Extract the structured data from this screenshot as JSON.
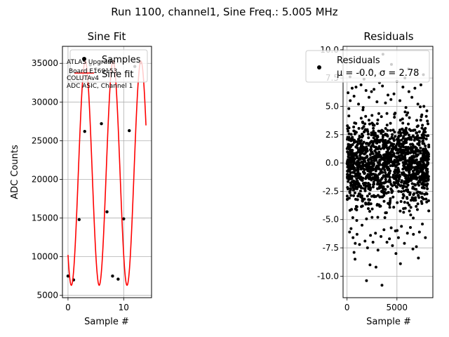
{
  "suptitle": "Run 1100, channel1, Sine Freq.: 5.005 MHz",
  "chart_data": [
    {
      "type": "scatter",
      "title": "Sine Fit",
      "xlabel": "Sample #",
      "ylabel": "ADC Counts",
      "xlim": [
        -1,
        15
      ],
      "ylim": [
        4700,
        37200
      ],
      "xticks": [
        0,
        10
      ],
      "yticks": [
        5000,
        10000,
        15000,
        20000,
        25000,
        30000,
        35000
      ],
      "grid": true,
      "legend_position": "upper right",
      "legend": [
        "Samples",
        "Sine fit"
      ],
      "annotation": [
        "ATLAS Upgrade",
        "Board E169153",
        "COLUTAv4",
        "ADC ASIC, Channel 1"
      ],
      "series": [
        {
          "name": "Samples",
          "color": "#000000",
          "x": [
            0,
            1,
            2,
            3,
            4,
            5,
            6,
            7,
            8,
            9,
            10,
            11,
            12,
            13
          ],
          "y": [
            7500,
            7000,
            14800,
            26200,
            34800,
            34300,
            27200,
            15800,
            7500,
            7100,
            14900,
            26300,
            34600,
            35100
          ]
        },
        {
          "name": "Sine fit",
          "color": "#ff0000",
          "fit": {
            "mean": 20800,
            "amplitude": 14500,
            "period": 5.0,
            "trough_at": 0.6,
            "x_range": [
              0,
              14
            ]
          }
        }
      ]
    },
    {
      "type": "scatter",
      "title": "Residuals",
      "xlabel": "Sample #",
      "xlim": [
        -400,
        8600
      ],
      "ylim": [
        -11.9,
        10.3
      ],
      "xticks": [
        0,
        5000
      ],
      "yticks": [
        -10.0,
        -7.5,
        -5.0,
        -2.5,
        0.0,
        2.5,
        5.0,
        7.5,
        10.0
      ],
      "grid": true,
      "legend_position": "upper right",
      "legend": [
        "Residuals",
        "μ = -0.0, σ = 2.78"
      ],
      "series": [
        {
          "name": "Residuals",
          "color": "#000000",
          "n_points": 8192,
          "mean": 0.0,
          "std": 2.78,
          "x": [
            100,
            180,
            250,
            320,
            400,
            510,
            600,
            700,
            820,
            900,
            1000,
            1150,
            1250,
            1400,
            1500,
            1620,
            1800,
            1900,
            2050,
            2200,
            2350,
            2450,
            2600,
            2700,
            2850,
            3000,
            3100,
            3250,
            3400,
            3550,
            3700,
            3850,
            4000,
            4100,
            4250,
            4400,
            4550,
            4700,
            4850,
            5000,
            5150,
            5300,
            5450,
            5600,
            5750,
            5900,
            6050,
            6200,
            6350,
            6500,
            6650,
            6800,
            6950,
            7100,
            7250,
            7400,
            7550,
            7700,
            7850,
            8000,
            1950,
            2400,
            3500,
            3600,
            300,
            800,
            1300,
            2900,
            4450,
            5350,
            6150,
            7150,
            7650,
            3300,
            700,
            4900,
            5800,
            6600,
            2300,
            1700,
            200,
            650,
            1100,
            1550,
            2000,
            2500,
            2950,
            3450,
            3950,
            4350,
            4800,
            5250,
            5700,
            6250,
            6700,
            7200,
            7600,
            8050,
            450,
            7900
          ],
          "y": [
            6.2,
            4.8,
            -6.1,
            5.5,
            -5.8,
            6.6,
            -6.6,
            5.9,
            -7.1,
            6.7,
            -6.3,
            5.2,
            -7.2,
            6.9,
            -5.5,
            4.9,
            -6.9,
            6.4,
            -7.5,
            5.8,
            -6.4,
            6.3,
            -7.0,
            6.5,
            -6.2,
            5.4,
            -7.7,
            7.1,
            -6.5,
            6.8,
            -5.9,
            5.3,
            -7.0,
            6.0,
            -6.7,
            5.6,
            -7.3,
            6.1,
            -6.0,
            7.2,
            -6.6,
            5.5,
            -5.6,
            6.7,
            -7.1,
            4.9,
            -6.2,
            6.3,
            -5.7,
            5.8,
            -6.3,
            6.6,
            -7.4,
            5.2,
            -6.1,
            6.9,
            -5.4,
            5.0,
            -6.6,
            4.6,
            -10.4,
            8.2,
            -10.8,
            9.6,
            7.6,
            -8.5,
            8.0,
            -9.2,
            8.7,
            -8.9,
            8.3,
            -8.4,
            7.8,
            7.9,
            -7.9,
            -8.0,
            7.5,
            -7.6,
            -9.0,
            7.4,
            3.1,
            -2.4,
            1.7,
            -3.8,
            0.6,
            4.2,
            -1.5,
            2.8,
            -4.4,
            3.5,
            -0.9,
            1.2,
            -2.9,
            4.0,
            -3.3,
            2.2,
            -1.1,
            3.7,
            -4.1,
            0.3
          ]
        }
      ]
    }
  ]
}
